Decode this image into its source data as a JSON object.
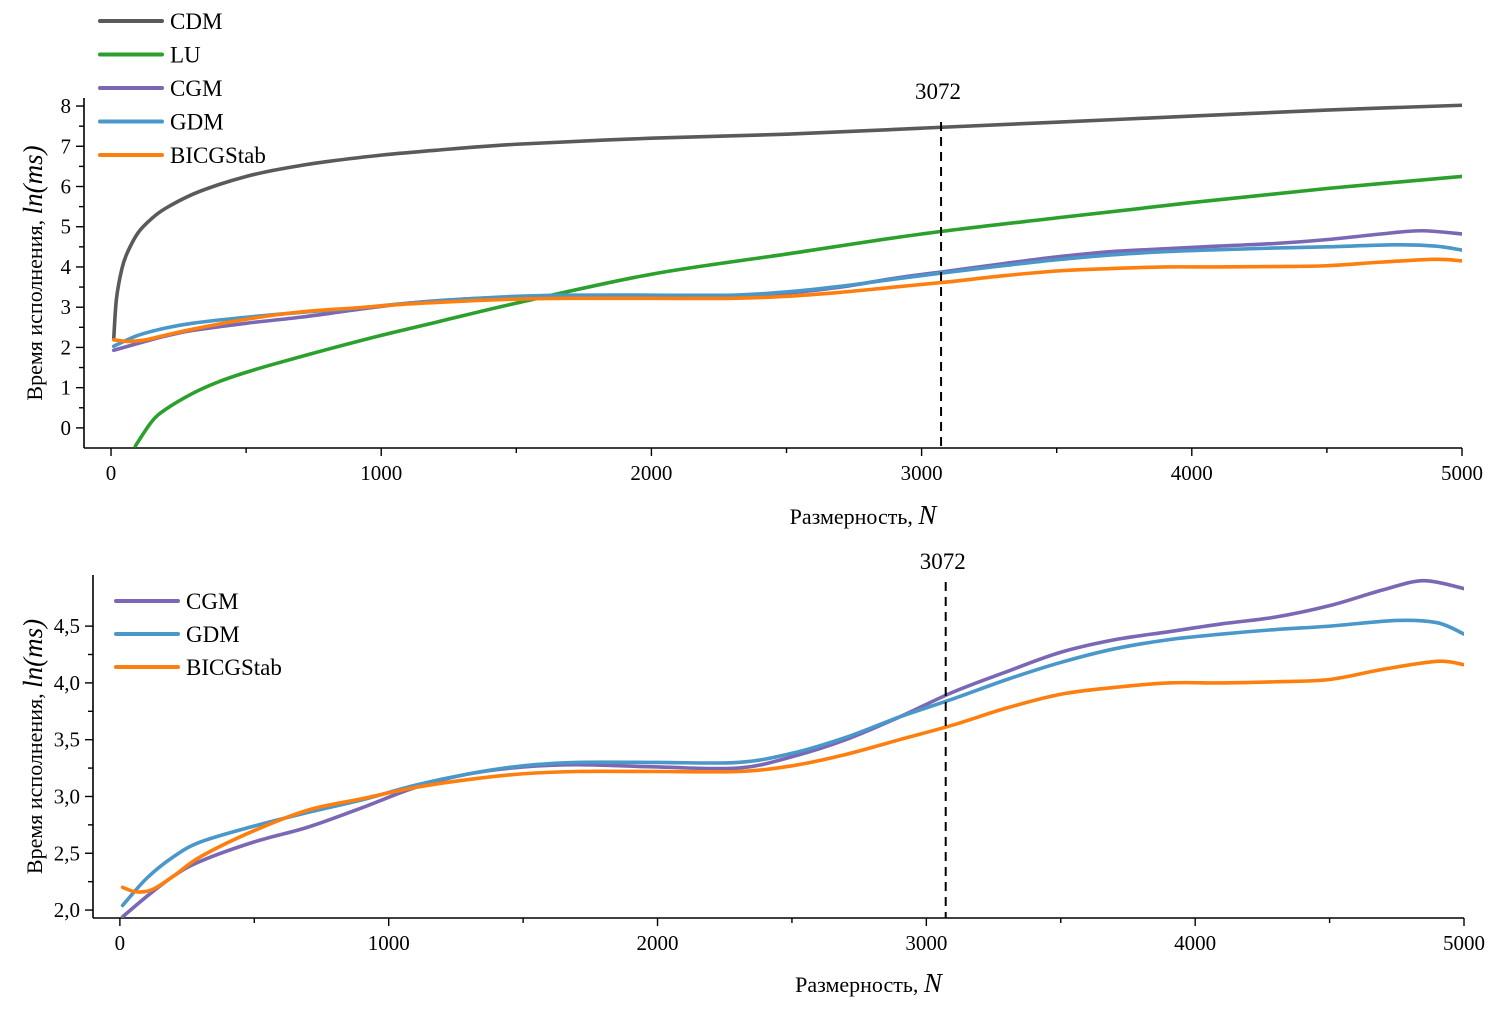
{
  "chart_data": [
    {
      "type": "line",
      "xlabel": "Размерность,",
      "xlabel_var": "N",
      "ylabel": "Время исполнения,",
      "ylabel_var": "ln(ms)",
      "xlim": [
        -100,
        5000
      ],
      "ylim": [
        -0.5,
        8.2
      ],
      "xticks": [
        0,
        1000,
        2000,
        3000,
        4000,
        5000
      ],
      "xtick_labels": [
        "0",
        "1000",
        "2000",
        "3000",
        "4000",
        "5000"
      ],
      "yticks": [
        0,
        1,
        2,
        3,
        4,
        5,
        6,
        7,
        8
      ],
      "ytick_labels": [
        "0",
        "1",
        "2",
        "3",
        "4",
        "5",
        "6",
        "7",
        "8"
      ],
      "vline": {
        "x": 3072,
        "label": "3072"
      },
      "legend_position": "top-left",
      "series": [
        {
          "name": "CDM",
          "color": "#5a5a5a",
          "x": [
            10,
            20,
            40,
            60,
            100,
            150,
            200,
            300,
            400,
            500,
            600,
            700,
            800,
            1000,
            1200,
            1500,
            2000,
            2500,
            3000,
            3500,
            4000,
            4500,
            5000
          ],
          "y": [
            2.2,
            3.2,
            3.95,
            4.35,
            4.85,
            5.2,
            5.45,
            5.8,
            6.05,
            6.25,
            6.4,
            6.52,
            6.62,
            6.78,
            6.9,
            7.05,
            7.2,
            7.3,
            7.45,
            7.6,
            7.75,
            7.9,
            8.02
          ]
        },
        {
          "name": "LU",
          "color": "#2ca02c",
          "x": [
            90,
            150,
            200,
            300,
            400,
            500,
            600,
            800,
            1000,
            1200,
            1500,
            2000,
            2500,
            3000,
            3500,
            4000,
            4500,
            5000
          ],
          "y": [
            -0.45,
            0.15,
            0.45,
            0.85,
            1.15,
            1.38,
            1.58,
            1.95,
            2.3,
            2.62,
            3.1,
            3.82,
            4.32,
            4.82,
            5.22,
            5.6,
            5.95,
            6.25
          ]
        },
        {
          "name": "CGM",
          "color": "#7b68b5",
          "x": [
            10,
            100,
            200,
            300,
            500,
            700,
            900,
            1100,
            1300,
            1500,
            1700,
            2000,
            2300,
            2500,
            2700,
            2900,
            3100,
            3300,
            3500,
            3700,
            3900,
            4100,
            4300,
            4500,
            4700,
            4850,
            5000
          ],
          "y": [
            1.93,
            2.1,
            2.28,
            2.42,
            2.6,
            2.75,
            2.93,
            3.1,
            3.2,
            3.25,
            3.27,
            3.25,
            3.25,
            3.35,
            3.5,
            3.72,
            3.9,
            4.08,
            4.25,
            4.38,
            4.45,
            4.52,
            4.58,
            4.68,
            4.82,
            4.9,
            4.82
          ]
        },
        {
          "name": "GDM",
          "color": "#4a97c9",
          "x": [
            10,
            100,
            200,
            300,
            500,
            700,
            900,
            1100,
            1300,
            1500,
            1700,
            2000,
            2300,
            2500,
            2700,
            2900,
            3100,
            3300,
            3500,
            3700,
            3900,
            4100,
            4300,
            4500,
            4750,
            4900,
            5000
          ],
          "y": [
            2.03,
            2.3,
            2.48,
            2.6,
            2.75,
            2.87,
            2.97,
            3.1,
            3.2,
            3.27,
            3.3,
            3.3,
            3.3,
            3.38,
            3.52,
            3.7,
            3.87,
            4.03,
            4.18,
            4.3,
            4.38,
            4.43,
            4.47,
            4.5,
            4.55,
            4.52,
            4.42
          ]
        },
        {
          "name": "BICGStab",
          "color": "#ff7f0e",
          "x": [
            10,
            60,
            120,
            200,
            300,
            500,
            700,
            900,
            1100,
            1300,
            1500,
            1700,
            2000,
            2300,
            2500,
            2700,
            2900,
            3100,
            3300,
            3500,
            3700,
            3900,
            4100,
            4300,
            4500,
            4700,
            4900,
            5000
          ],
          "y": [
            2.19,
            2.15,
            2.18,
            2.3,
            2.45,
            2.7,
            2.88,
            2.98,
            3.08,
            3.15,
            3.2,
            3.22,
            3.22,
            3.22,
            3.27,
            3.37,
            3.5,
            3.63,
            3.78,
            3.9,
            3.96,
            4.0,
            4.0,
            4.01,
            4.03,
            4.12,
            4.19,
            4.15
          ]
        }
      ]
    },
    {
      "type": "line",
      "xlabel": "Размерность,",
      "xlabel_var": "N",
      "ylabel": "Время исполнения,",
      "ylabel_var": "ln(ms)",
      "xlim": [
        -100,
        5000
      ],
      "ylim": [
        1.93,
        4.95
      ],
      "xticks": [
        0,
        1000,
        2000,
        3000,
        4000,
        5000
      ],
      "xtick_labels": [
        "0",
        "1000",
        "2000",
        "3000",
        "4000",
        "5000"
      ],
      "yticks": [
        2.0,
        2.5,
        3.0,
        3.5,
        4.0,
        4.5
      ],
      "ytick_labels": [
        "2,0",
        "2,5",
        "3,0",
        "3,5",
        "4,0",
        "4,5"
      ],
      "vline": {
        "x": 3072,
        "label": "3072"
      },
      "legend_position": "top-left",
      "series": [
        {
          "name": "CGM",
          "color": "#7b68b5",
          "x": [
            10,
            100,
            200,
            300,
            500,
            700,
            900,
            1100,
            1300,
            1500,
            1700,
            2000,
            2300,
            2500,
            2700,
            2900,
            3100,
            3300,
            3500,
            3700,
            3900,
            4100,
            4300,
            4500,
            4700,
            4850,
            5000
          ],
          "y": [
            1.94,
            2.12,
            2.3,
            2.43,
            2.6,
            2.73,
            2.9,
            3.08,
            3.2,
            3.26,
            3.28,
            3.26,
            3.25,
            3.35,
            3.5,
            3.7,
            3.92,
            4.1,
            4.27,
            4.38,
            4.45,
            4.52,
            4.58,
            4.68,
            4.82,
            4.9,
            4.83
          ]
        },
        {
          "name": "GDM",
          "color": "#4a97c9",
          "x": [
            10,
            100,
            200,
            300,
            500,
            700,
            900,
            1100,
            1300,
            1500,
            1700,
            2000,
            2300,
            2500,
            2700,
            2900,
            3100,
            3300,
            3500,
            3700,
            3900,
            4100,
            4300,
            4500,
            4750,
            4900,
            5000
          ],
          "y": [
            2.04,
            2.28,
            2.47,
            2.6,
            2.74,
            2.86,
            2.97,
            3.1,
            3.2,
            3.27,
            3.3,
            3.3,
            3.3,
            3.38,
            3.52,
            3.7,
            3.86,
            4.03,
            4.18,
            4.3,
            4.38,
            4.43,
            4.47,
            4.5,
            4.55,
            4.53,
            4.43
          ]
        },
        {
          "name": "BICGStab",
          "color": "#ff7f0e",
          "x": [
            10,
            60,
            120,
            200,
            300,
            500,
            700,
            900,
            1100,
            1300,
            1500,
            1700,
            2000,
            2300,
            2500,
            2700,
            2900,
            3100,
            3300,
            3500,
            3700,
            3900,
            4100,
            4300,
            4500,
            4700,
            4900,
            5000
          ],
          "y": [
            2.2,
            2.16,
            2.18,
            2.3,
            2.47,
            2.7,
            2.88,
            2.98,
            3.08,
            3.15,
            3.2,
            3.22,
            3.22,
            3.22,
            3.27,
            3.37,
            3.5,
            3.63,
            3.78,
            3.9,
            3.96,
            4.0,
            4.0,
            4.01,
            4.03,
            4.12,
            4.19,
            4.16
          ]
        }
      ]
    }
  ]
}
